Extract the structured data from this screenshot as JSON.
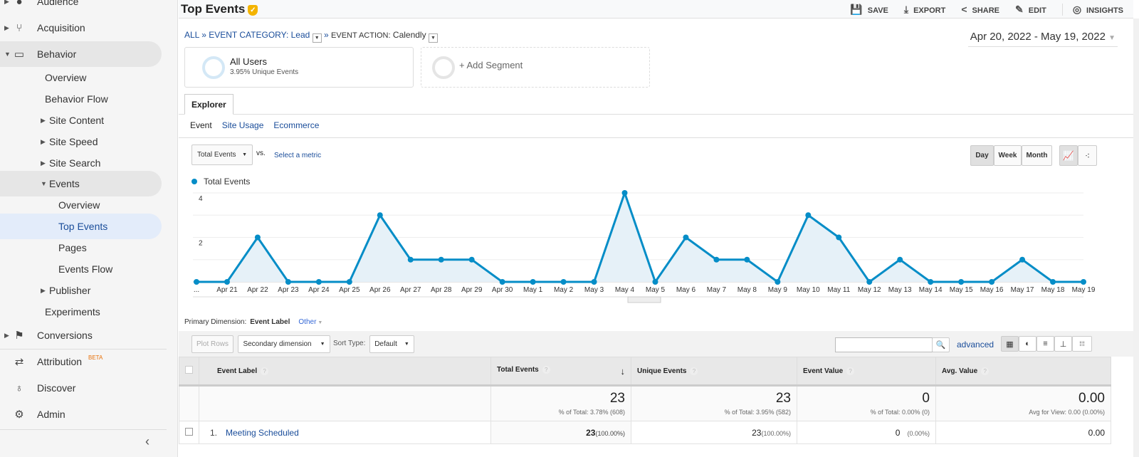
{
  "sidebar": {
    "items": [
      {
        "label": "Audience",
        "icon": "person-icon",
        "caret": "right"
      },
      {
        "label": "Acquisition",
        "icon": "acquisition-icon",
        "caret": "right"
      },
      {
        "label": "Behavior",
        "icon": "behavior-icon",
        "caret": "down"
      },
      {
        "label": "Overview"
      },
      {
        "label": "Behavior Flow"
      },
      {
        "label": "Site Content",
        "caret": "right"
      },
      {
        "label": "Site Speed",
        "caret": "right"
      },
      {
        "label": "Site Search",
        "caret": "right"
      },
      {
        "label": "Events",
        "caret": "down"
      },
      {
        "label": "Overview"
      },
      {
        "label": "Top Events"
      },
      {
        "label": "Pages"
      },
      {
        "label": "Events Flow"
      },
      {
        "label": "Publisher",
        "caret": "right"
      },
      {
        "label": "Experiments"
      },
      {
        "label": "Conversions",
        "icon": "flag-icon",
        "caret": "right"
      },
      {
        "label": "Attribution",
        "icon": "attribution-icon",
        "beta": "BETA"
      },
      {
        "label": "Discover",
        "icon": "lightbulb-icon"
      },
      {
        "label": "Admin",
        "icon": "gear-icon"
      }
    ],
    "collapse": "‹"
  },
  "header": {
    "title": "Top Events",
    "tools": [
      {
        "label": "SAVE",
        "icon": "save-icon"
      },
      {
        "label": "EXPORT",
        "icon": "export-icon"
      },
      {
        "label": "SHARE",
        "icon": "share-icon"
      },
      {
        "label": "EDIT",
        "icon": "edit-icon"
      },
      {
        "label": "INSIGHTS",
        "icon": "insights-icon"
      }
    ]
  },
  "breadcrumb": {
    "all": "ALL",
    "cat_key": "EVENT CATEGORY:",
    "cat_val": "Lead",
    "act_key": "EVENT ACTION:",
    "act_val": "Calendly"
  },
  "date_range": "Apr 20, 2022 - May 19, 2022",
  "segments": {
    "name": "All Users",
    "sub": "3.95% Unique Events",
    "add": "+ Add Segment"
  },
  "tabs": {
    "explorer": "Explorer",
    "sub": [
      "Event",
      "Site Usage",
      "Ecommerce"
    ]
  },
  "metric": {
    "selected": "Total Events",
    "vs": "vs.",
    "select": "Select a metric"
  },
  "granularity": [
    "Day",
    "Week",
    "Month"
  ],
  "colors": {
    "series": "#058dc7",
    "fill": "#e6f1f8",
    "link": "#1a4d9a"
  },
  "chart_data": {
    "type": "area",
    "series": [
      {
        "name": "Total Events",
        "values": [
          0,
          0,
          2,
          0,
          0,
          0,
          3,
          1,
          1,
          1,
          0,
          0,
          0,
          0,
          4,
          0,
          2,
          1,
          1,
          0,
          3,
          2,
          0,
          1,
          0,
          0,
          0,
          1,
          0,
          0
        ]
      }
    ],
    "x": [
      "...",
      "Apr 21",
      "Apr 22",
      "Apr 23",
      "Apr 24",
      "Apr 25",
      "Apr 26",
      "Apr 27",
      "Apr 28",
      "Apr 29",
      "Apr 30",
      "May 1",
      "May 2",
      "May 3",
      "May 4",
      "May 5",
      "May 6",
      "May 7",
      "May 8",
      "May 9",
      "May 10",
      "May 11",
      "May 12",
      "May 13",
      "May 14",
      "May 15",
      "May 16",
      "May 17",
      "May 18",
      "May 19"
    ],
    "yticks": [
      "2",
      "4"
    ],
    "ylim": [
      0,
      4
    ],
    "grid": true,
    "legend": "top-left"
  },
  "dimension": {
    "label": "Primary Dimension:",
    "current": "Event Label",
    "other": "Other"
  },
  "controls": {
    "plot_rows": "Plot Rows",
    "secondary": "Secondary dimension",
    "sort_label": "Sort Type:",
    "sort": "Default",
    "advanced": "advanced"
  },
  "table": {
    "columns": [
      "Event Label",
      "Total Events",
      "Unique Events",
      "Event Value",
      "Avg. Value"
    ],
    "totals": [
      {
        "v": "23",
        "s": "% of Total: 3.78% (608)"
      },
      {
        "v": "23",
        "s": "% of Total: 3.95% (582)"
      },
      {
        "v": "0",
        "s": "% of Total: 0.00% (0)"
      },
      {
        "v": "0.00",
        "s": "Avg for View: 0.00 (0.00%)"
      }
    ],
    "rows": [
      {
        "n": "1.",
        "label": "Meeting Scheduled",
        "total": "23",
        "total_pct": "(100.00%)",
        "unique": "23",
        "unique_pct": "(100.00%)",
        "value": "0",
        "value_pct": "(0.00%)",
        "avg": "0.00"
      }
    ]
  }
}
